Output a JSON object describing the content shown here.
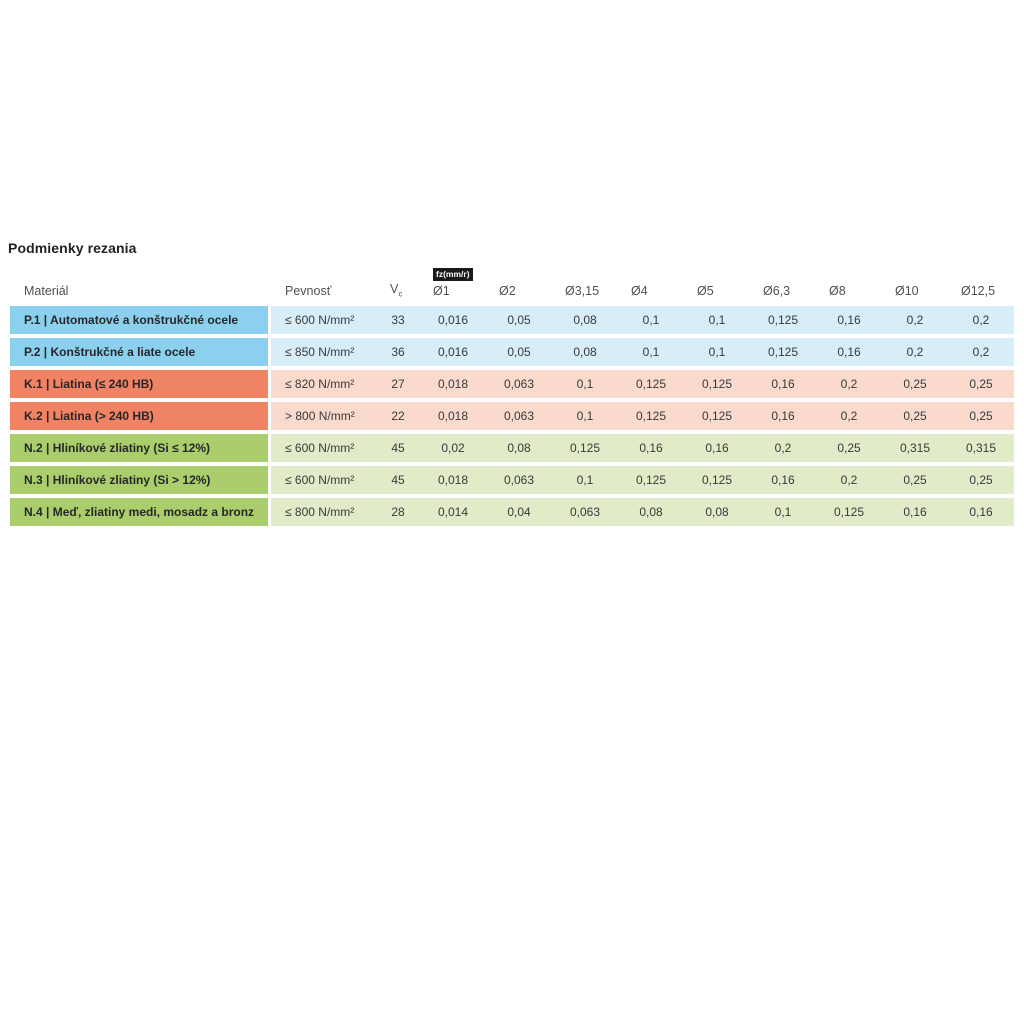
{
  "title": "Podmienky rezania",
  "table": {
    "headers": {
      "material": "Materiál",
      "strength": "Pevnosť",
      "vc_main": "V",
      "vc_sub": "c",
      "fz_badge": "fz(mm/r)",
      "diameters": [
        "Ø1",
        "Ø2",
        "Ø3,15",
        "Ø4",
        "Ø5",
        "Ø6,3",
        "Ø8",
        "Ø10",
        "Ø12,5"
      ]
    },
    "rows": [
      {
        "group": "p",
        "material": "P.1 | Automatové a konštrukčné ocele",
        "strength": "≤ 600 N/mm²",
        "vc": "33",
        "values": [
          "0,016",
          "0,05",
          "0,08",
          "0,1",
          "0,1",
          "0,125",
          "0,16",
          "0,2",
          "0,2"
        ]
      },
      {
        "group": "p",
        "material": "P.2 | Konštrukčné a liate ocele",
        "strength": "≤ 850 N/mm²",
        "vc": "36",
        "values": [
          "0,016",
          "0,05",
          "0,08",
          "0,1",
          "0,1",
          "0,125",
          "0,16",
          "0,2",
          "0,2"
        ]
      },
      {
        "group": "k",
        "material": "K.1 | Liatina (≤ 240 HB)",
        "strength": "≤ 820 N/mm²",
        "vc": "27",
        "values": [
          "0,018",
          "0,063",
          "0,1",
          "0,125",
          "0,125",
          "0,16",
          "0,2",
          "0,25",
          "0,25"
        ]
      },
      {
        "group": "k",
        "material": "K.2 | Liatina (> 240 HB)",
        "strength": "> 800 N/mm²",
        "vc": "22",
        "values": [
          "0,018",
          "0,063",
          "0,1",
          "0,125",
          "0,125",
          "0,16",
          "0,2",
          "0,25",
          "0,25"
        ]
      },
      {
        "group": "n",
        "material": "N.2 | Hliníkové zliatiny (Si ≤ 12%)",
        "strength": "≤ 600 N/mm²",
        "vc": "45",
        "values": [
          "0,02",
          "0,08",
          "0,125",
          "0,16",
          "0,16",
          "0,2",
          "0,25",
          "0,315",
          "0,315"
        ]
      },
      {
        "group": "n",
        "material": "N.3 | Hliníkové zliatiny (Si > 12%)",
        "strength": "≤ 600 N/mm²",
        "vc": "45",
        "values": [
          "0,018",
          "0,063",
          "0,1",
          "0,125",
          "0,125",
          "0,16",
          "0,2",
          "0,25",
          "0,25"
        ]
      },
      {
        "group": "n",
        "material": "N.4 | Meď, zliatiny medi, mosadz a bronz",
        "strength": "≤ 800 N/mm²",
        "vc": "28",
        "values": [
          "0,014",
          "0,04",
          "0,063",
          "0,08",
          "0,08",
          "0,1",
          "0,125",
          "0,16",
          "0,16"
        ]
      }
    ]
  },
  "colors": {
    "p_label": "#8BD1EE",
    "p_band": "#D7EEF9",
    "k_label": "#F08363",
    "k_band": "#F9DACD",
    "n_label": "#A9CE6B",
    "n_band": "#E0EBC8",
    "badge_bg": "#1A1A1A",
    "badge_text": "#FFFFFF"
  }
}
